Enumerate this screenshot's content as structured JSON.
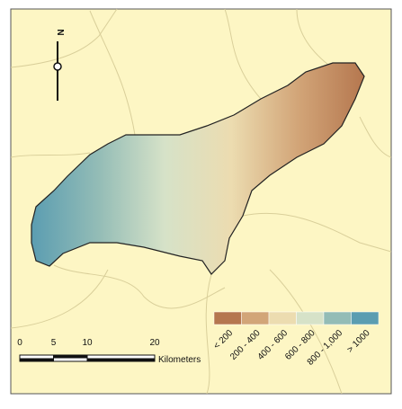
{
  "north_arrow": {
    "label": "N"
  },
  "scale_bar": {
    "ticks": [
      0,
      5,
      10,
      20
    ],
    "unit": "Kilometers"
  },
  "legend": {
    "items": [
      {
        "label": "< 200",
        "color": "#b5774f"
      },
      {
        "label": "200 - 400",
        "color": "#d2a578"
      },
      {
        "label": "400 - 600",
        "color": "#ecdcb0"
      },
      {
        "label": "600 - 800",
        "color": "#d6e2c8"
      },
      {
        "label": "800 - 1,000",
        "color": "#93bcb6"
      },
      {
        "label": "> 1000",
        "color": "#5b9db1"
      }
    ]
  }
}
